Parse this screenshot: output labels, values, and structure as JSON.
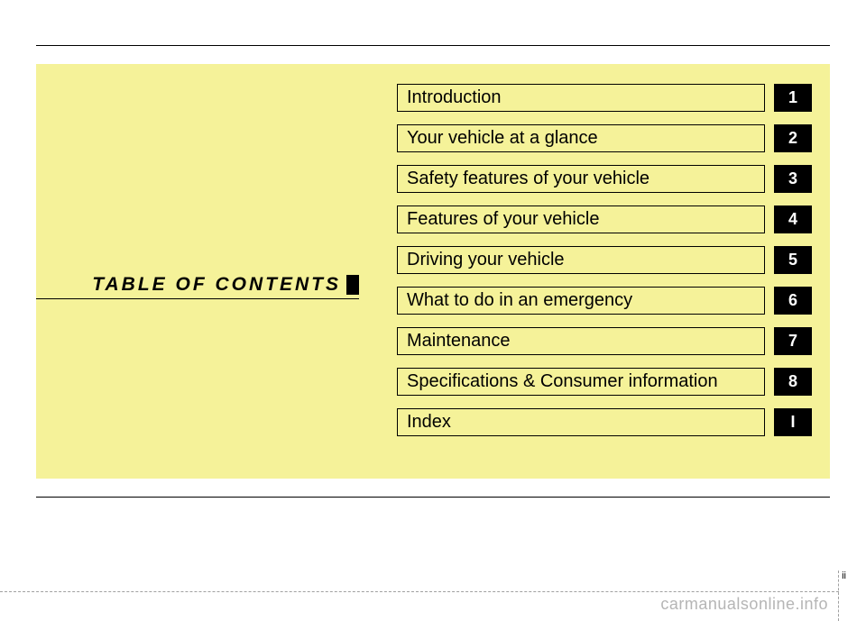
{
  "title": "TABLE OF CONTENTS",
  "page_num": "ii",
  "watermark": "carmanualsonline.info",
  "panel_bg": "#f5f299",
  "tab_bg": "#000000",
  "tab_fg": "#ffffff",
  "chapters": [
    {
      "label": "Introduction",
      "tab": "1"
    },
    {
      "label": "Your vehicle at a glance",
      "tab": "2"
    },
    {
      "label": "Safety features of your vehicle",
      "tab": "3"
    },
    {
      "label": "Features of your vehicle",
      "tab": "4"
    },
    {
      "label": "Driving your vehicle",
      "tab": "5"
    },
    {
      "label": "What to do in an emergency",
      "tab": "6"
    },
    {
      "label": "Maintenance",
      "tab": "7"
    },
    {
      "label": "Specifications & Consumer information",
      "tab": "8"
    },
    {
      "label": "Index",
      "tab": "I"
    }
  ]
}
